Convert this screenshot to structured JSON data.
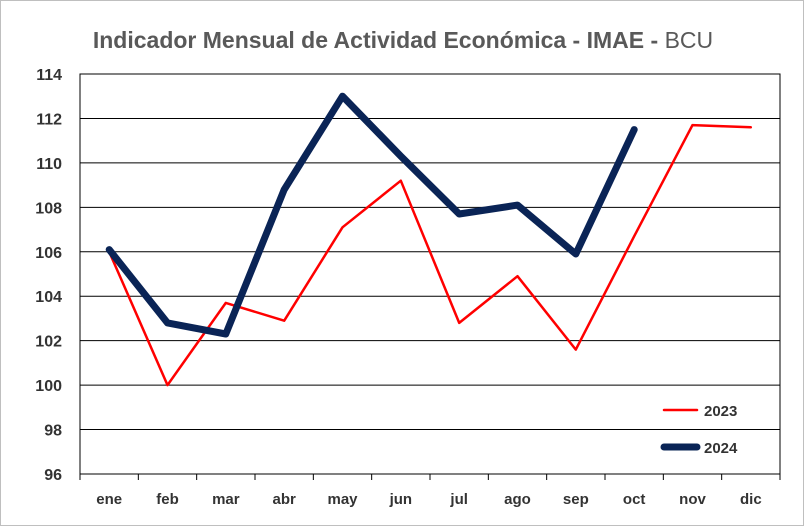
{
  "chart_data": {
    "type": "line",
    "title": "Indicador Mensual de Actividad Económica - IMAE",
    "title_separator": "-",
    "subtitle": "BCU",
    "categories": [
      "ene",
      "feb",
      "mar",
      "abr",
      "may",
      "jun",
      "jul",
      "ago",
      "sep",
      "oct",
      "nov",
      "dic"
    ],
    "ylim": [
      96,
      114
    ],
    "yticks": [
      96,
      98,
      100,
      102,
      104,
      106,
      108,
      110,
      112,
      114
    ],
    "grid": true,
    "legend_position": "bottom-right",
    "series": [
      {
        "name": "2023",
        "color": "#ff0000",
        "values": [
          106.0,
          100.0,
          103.7,
          102.9,
          107.1,
          109.2,
          102.8,
          104.9,
          101.6,
          106.7,
          111.7,
          111.6
        ]
      },
      {
        "name": "2024",
        "color": "#0a2456",
        "values": [
          106.1,
          102.8,
          102.3,
          108.8,
          113.0,
          110.3,
          107.7,
          108.1,
          105.9,
          111.5,
          null,
          null
        ]
      }
    ]
  }
}
